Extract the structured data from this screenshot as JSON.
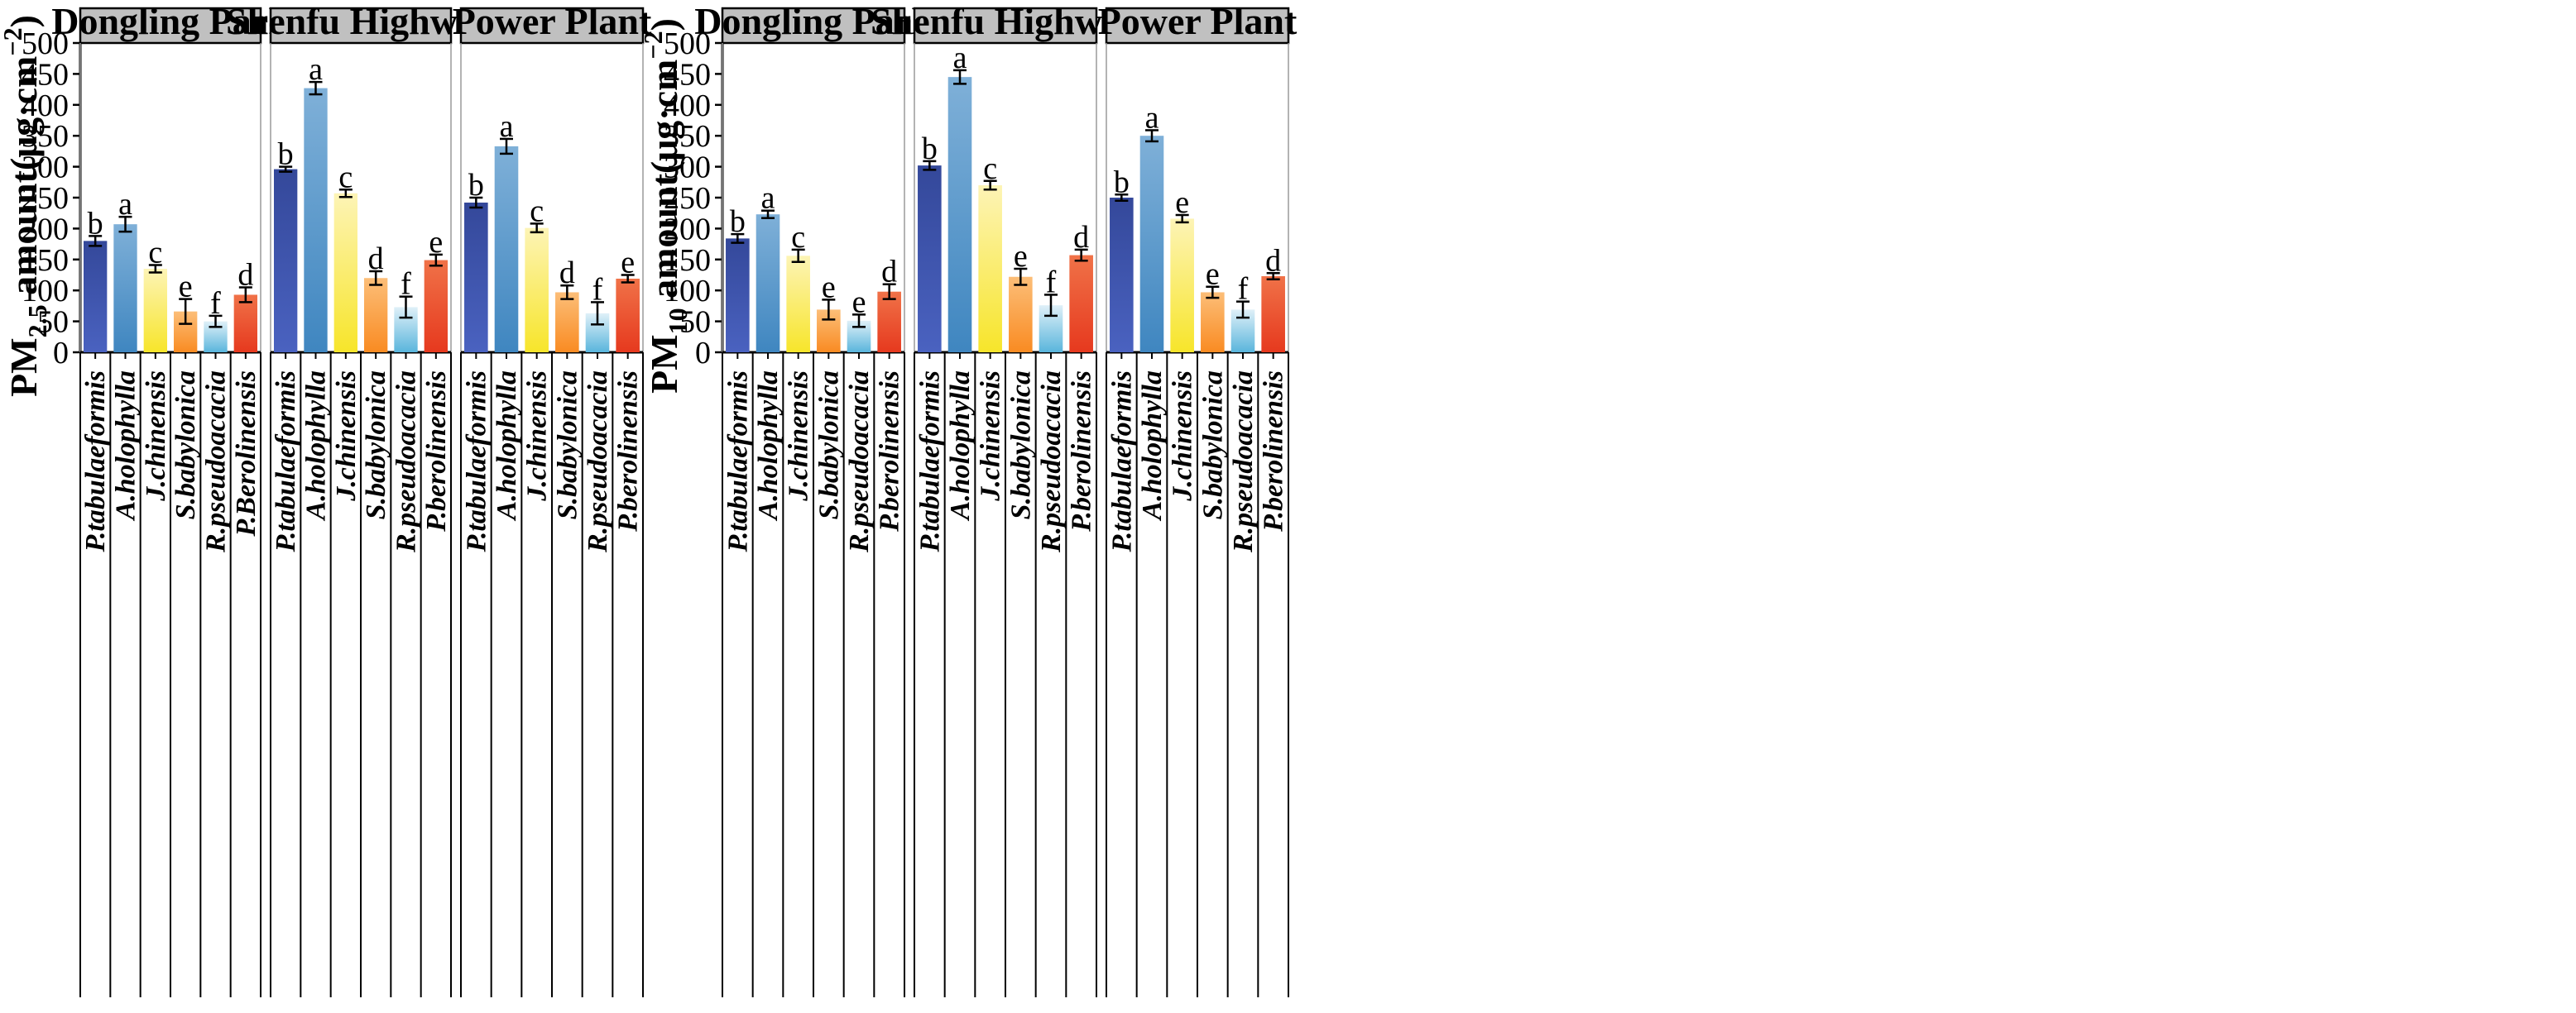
{
  "chart_data": [
    {
      "type": "bar",
      "ylabel_main": "PM",
      "ylabel_sub": "2.5",
      "ylabel_rest": " amount(μg·cm",
      "ylabel_sup": "−2",
      "ylabel_end": ")",
      "ylim": [
        0,
        500
      ],
      "yticks": [
        "0",
        "50",
        "100",
        "150",
        "200",
        "250",
        "300",
        "350",
        "400",
        "450",
        "500"
      ],
      "grid": false,
      "facets": [
        {
          "title": "Dongling Park",
          "categories": [
            "P.tabulaeformis",
            "A.holophylla",
            "J.chinensis",
            "S.babylonica",
            "R.pseudoacacia",
            "P.Berolinensis"
          ],
          "values": [
            180,
            207,
            135,
            66,
            50,
            93
          ],
          "errors": [
            8,
            12,
            6,
            20,
            9,
            12
          ],
          "letters": [
            "b",
            "a",
            "c",
            "e",
            "f",
            "d"
          ]
        },
        {
          "title": "Shenfu Highway",
          "categories": [
            "P.tabulaeformis",
            "A.holophylla",
            "J.chinensis",
            "S.babylonica",
            "R.pseudoacacia",
            "P.berolinensis"
          ],
          "values": [
            296,
            427,
            257,
            120,
            73,
            149
          ],
          "errors": [
            4,
            10,
            6,
            11,
            17,
            9
          ],
          "letters": [
            "b",
            "a",
            "c",
            "d",
            "f",
            "e"
          ]
        },
        {
          "title": "Power Plant",
          "categories": [
            "P.tabulaeformis",
            "A.holophylla",
            "J.chinensis",
            "S.babylonica",
            "R.pseudoacacia",
            "P.berolinensis"
          ],
          "values": [
            242,
            333,
            201,
            97,
            63,
            119
          ],
          "errors": [
            8,
            12,
            7,
            11,
            18,
            6
          ],
          "letters": [
            "b",
            "a",
            "c",
            "d",
            "f",
            "e"
          ]
        }
      ]
    },
    {
      "type": "bar",
      "ylabel_main": "PM",
      "ylabel_sub": "10",
      "ylabel_rest": " amount(μg·cm",
      "ylabel_sup": "−2",
      "ylabel_end": ")",
      "ylim": [
        0,
        500
      ],
      "yticks": [
        "0",
        "50",
        "100",
        "150",
        "200",
        "250",
        "300",
        "350",
        "400",
        "450",
        "500"
      ],
      "grid": false,
      "facets": [
        {
          "title": "Dongling Park",
          "categories": [
            "P.tabulaeformis",
            "A.holophylla",
            "J.chinensis",
            "S.babylonica",
            "R.pseudoacacia",
            "P.berolinensis"
          ],
          "values": [
            184,
            223,
            156,
            69,
            51,
            98
          ],
          "errors": [
            7,
            6,
            10,
            16,
            10,
            12
          ],
          "letters": [
            "b",
            "a",
            "c",
            "e",
            "e",
            "d"
          ]
        },
        {
          "title": "Shenfu Highway",
          "categories": [
            "P.tabulaeformis",
            "A.holophylla",
            "J.chinensis",
            "S.babylonica",
            "R.pseudoacacia",
            "P.berolinensis"
          ],
          "values": [
            302,
            445,
            270,
            122,
            76,
            157
          ],
          "errors": [
            7,
            11,
            7,
            13,
            17,
            9
          ],
          "letters": [
            "b",
            "a",
            "c",
            "e",
            "f",
            "d"
          ]
        },
        {
          "title": "Power Plant",
          "categories": [
            "P.tabulaeformis",
            "A.holophylla",
            "J.chinensis",
            "S.babylonica",
            "R.pseudoacacia",
            "P.berolinensis"
          ],
          "values": [
            250,
            350,
            216,
            97,
            69,
            123
          ],
          "errors": [
            5,
            9,
            6,
            9,
            13,
            5
          ],
          "letters": [
            "b",
            "a",
            "e",
            "e",
            "f",
            "d"
          ]
        }
      ]
    }
  ],
  "bar_gradients": [
    {
      "top": "#34489a",
      "bottom": "#4a62c0"
    },
    {
      "top": "#7fb0d8",
      "bottom": "#3f86c0"
    },
    {
      "top": "#fdf4b6",
      "bottom": "#f7e52a"
    },
    {
      "top": "#fcbe78",
      "bottom": "#f98b22"
    },
    {
      "top": "#dff0f8",
      "bottom": "#59b5dc"
    },
    {
      "top": "#f07248",
      "bottom": "#e6391e"
    }
  ],
  "strip_fill": "#c0c0c0"
}
